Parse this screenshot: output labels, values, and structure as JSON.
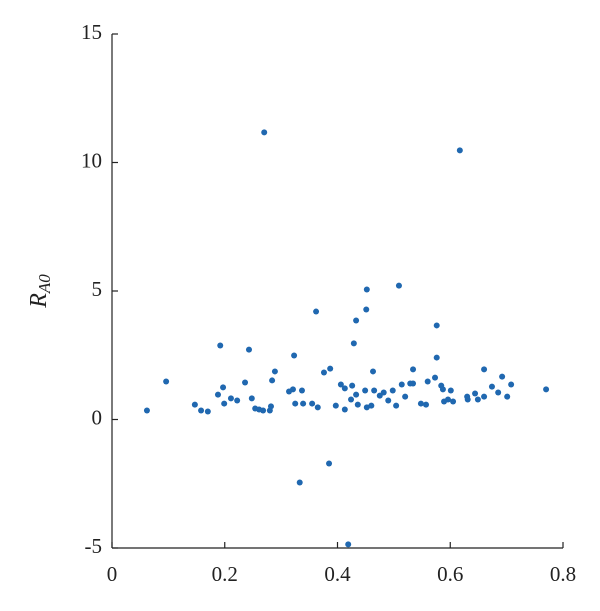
{
  "chart_data": {
    "type": "scatter",
    "ylabel": "R",
    "ylabel_sub": "A0",
    "color": "#2068b0",
    "xlim": [
      0,
      0.8
    ],
    "xticks": [
      0,
      0.2,
      0.4,
      0.6,
      0.8
    ],
    "ylim": [
      -5,
      15
    ],
    "yticks": [
      -5,
      0,
      5,
      10,
      15
    ],
    "x": [
      0.062,
      0.096,
      0.147,
      0.158,
      0.17,
      0.192,
      0.188,
      0.197,
      0.199,
      0.211,
      0.222,
      0.236,
      0.243,
      0.248,
      0.254,
      0.261,
      0.27,
      0.268,
      0.28,
      0.284,
      0.289,
      0.282,
      0.314,
      0.321,
      0.323,
      0.325,
      0.337,
      0.339,
      0.333,
      0.355,
      0.362,
      0.365,
      0.376,
      0.387,
      0.385,
      0.397,
      0.406,
      0.413,
      0.413,
      0.424,
      0.419,
      0.426,
      0.429,
      0.433,
      0.433,
      0.436,
      0.449,
      0.451,
      0.452,
      0.452,
      0.46,
      0.463,
      0.465,
      0.475,
      0.482,
      0.49,
      0.498,
      0.504,
      0.509,
      0.514,
      0.52,
      0.529,
      0.534,
      0.534,
      0.548,
      0.557,
      0.56,
      0.573,
      0.576,
      0.576,
      0.584,
      0.587,
      0.589,
      0.596,
      0.601,
      0.605,
      0.617,
      0.63,
      0.631,
      0.644,
      0.649,
      0.66,
      0.66,
      0.674,
      0.685,
      0.692,
      0.701,
      0.708,
      0.77
    ],
    "values": [
      0.35,
      1.48,
      0.58,
      0.35,
      0.31,
      2.88,
      0.97,
      1.25,
      0.62,
      0.82,
      0.74,
      1.44,
      2.72,
      0.82,
      0.43,
      0.39,
      11.17,
      0.35,
      0.35,
      1.52,
      1.87,
      0.51,
      1.09,
      1.17,
      2.49,
      0.62,
      1.13,
      0.62,
      -2.45,
      0.62,
      4.2,
      0.47,
      1.83,
      1.98,
      -1.71,
      0.54,
      1.36,
      0.39,
      1.21,
      0.78,
      -4.86,
      1.32,
      2.96,
      3.85,
      0.97,
      0.58,
      1.13,
      4.28,
      5.06,
      0.47,
      0.54,
      1.87,
      1.13,
      0.93,
      1.05,
      0.74,
      1.13,
      0.54,
      5.21,
      1.36,
      0.89,
      1.4,
      1.95,
      1.4,
      0.62,
      0.58,
      1.48,
      1.63,
      3.66,
      2.41,
      1.32,
      1.17,
      0.7,
      0.78,
      1.13,
      0.7,
      10.47,
      0.89,
      0.78,
      1.01,
      0.78,
      1.95,
      0.89,
      1.28,
      1.05,
      1.67,
      0.89,
      1.36,
      1.17
    ]
  }
}
